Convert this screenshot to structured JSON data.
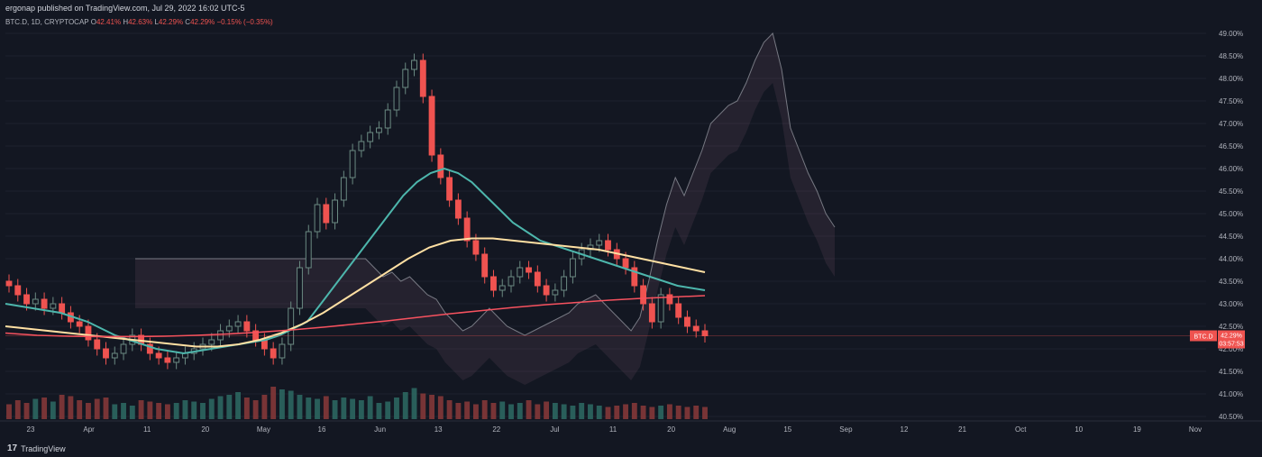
{
  "header": {
    "published": "ergonap published on TradingView.com, Jul 29, 2022 16:02 UTC-5",
    "symbol": "BTC.D, 1D, CRYPTOCAP",
    "o_label": "O",
    "o": "42.41%",
    "h_label": "H",
    "h": "42.63%",
    "l_label": "L",
    "l": "42.29%",
    "c_label": "C",
    "c": "42.29%",
    "change": "−0.15% (−0.35%)"
  },
  "brand": {
    "logo": "17",
    "name": "TradingView"
  },
  "price_tag": {
    "symbol": "BTC.D",
    "value": "42.29%",
    "countdown": "03:57:53"
  },
  "chart_data": {
    "type": "candlestick",
    "ylim": [
      40.5,
      49.0
    ],
    "y_ticks": [
      "49.00%",
      "48.50%",
      "48.00%",
      "47.50%",
      "47.00%",
      "46.50%",
      "46.00%",
      "45.50%",
      "45.00%",
      "44.50%",
      "44.00%",
      "43.50%",
      "43.00%",
      "42.50%",
      "42.00%",
      "41.50%",
      "41.00%",
      "40.50%"
    ],
    "x_ticks": [
      "23",
      "Apr",
      "11",
      "20",
      "May",
      "16",
      "Jun",
      "13",
      "22",
      "Jul",
      "11",
      "20",
      "Aug",
      "15",
      "Sep",
      "12",
      "21",
      "Oct",
      "10",
      "19",
      "Nov"
    ],
    "last_close": 42.29,
    "colors": {
      "up": "#6b8a82",
      "down": "#ef5350",
      "bg": "#131722",
      "ma_fast": "#4db6ac",
      "ma_mid": "#ffe0a3",
      "ma_slow": "#f7525f",
      "ichimoku": "#b2b5be"
    },
    "close_series": [
      43.4,
      43.2,
      43.0,
      43.1,
      42.9,
      43.0,
      42.8,
      42.6,
      42.5,
      42.2,
      42.0,
      41.8,
      41.9,
      42.1,
      42.3,
      42.1,
      41.9,
      41.8,
      41.7,
      41.8,
      41.9,
      42.0,
      42.1,
      42.2,
      42.4,
      42.5,
      42.6,
      42.4,
      42.2,
      42.0,
      41.8,
      42.1,
      42.9,
      43.8,
      44.6,
      45.2,
      44.8,
      45.3,
      45.8,
      46.4,
      46.6,
      46.8,
      46.9,
      47.3,
      47.8,
      48.2,
      48.4,
      47.6,
      46.3,
      45.8,
      45.3,
      44.9,
      44.4,
      44.1,
      43.6,
      43.3,
      43.4,
      43.6,
      43.8,
      43.7,
      43.4,
      43.2,
      43.3,
      43.6,
      44.0,
      44.2,
      44.3,
      44.4,
      44.2,
      44.0,
      43.8,
      43.4,
      43.0,
      42.6,
      43.2,
      43.0,
      42.7,
      42.5,
      42.4,
      42.29
    ],
    "volume_series": [
      0.55,
      0.7,
      0.6,
      0.75,
      0.8,
      0.65,
      0.9,
      0.85,
      0.7,
      0.6,
      0.75,
      0.8,
      0.55,
      0.6,
      0.5,
      0.7,
      0.65,
      0.6,
      0.55,
      0.6,
      0.7,
      0.65,
      0.6,
      0.75,
      0.85,
      0.9,
      1.0,
      0.8,
      0.7,
      0.9,
      1.2,
      1.1,
      1.05,
      0.9,
      0.8,
      0.75,
      0.85,
      0.7,
      0.8,
      0.75,
      0.7,
      0.85,
      0.6,
      0.65,
      0.8,
      1.0,
      1.15,
      0.95,
      0.9,
      0.85,
      0.7,
      0.6,
      0.65,
      0.55,
      0.7,
      0.6,
      0.65,
      0.55,
      0.6,
      0.7,
      0.55,
      0.65,
      0.6,
      0.55,
      0.5,
      0.6,
      0.55,
      0.5,
      0.45,
      0.5,
      0.55,
      0.6,
      0.5,
      0.45,
      0.5,
      0.55,
      0.5,
      0.45,
      0.5,
      0.45
    ],
    "ma_fast": [
      43.0,
      42.95,
      42.9,
      42.85,
      42.8,
      42.7,
      42.6,
      42.45,
      42.3,
      42.2,
      42.1,
      42.0,
      41.95,
      41.9,
      41.95,
      42.0,
      42.05,
      42.1,
      42.15,
      42.2,
      42.3,
      42.45,
      42.6,
      43.0,
      43.4,
      43.8,
      44.2,
      44.6,
      45.0,
      45.4,
      45.7,
      45.9,
      46.0,
      45.9,
      45.7,
      45.4,
      45.1,
      44.8,
      44.6,
      44.4,
      44.3,
      44.2,
      44.1,
      44.0,
      43.9,
      43.8,
      43.7,
      43.6,
      43.5,
      43.4,
      43.35,
      43.3
    ],
    "ma_mid": [
      42.5,
      42.45,
      42.4,
      42.35,
      42.3,
      42.25,
      42.2,
      42.15,
      42.1,
      42.05,
      42.05,
      42.1,
      42.2,
      42.35,
      42.55,
      42.8,
      43.1,
      43.4,
      43.7,
      44.0,
      44.25,
      44.4,
      44.45,
      44.45,
      44.4,
      44.35,
      44.3,
      44.25,
      44.2,
      44.1,
      44.0,
      43.9,
      43.8,
      43.7
    ],
    "ma_slow": [
      42.35,
      42.3,
      42.28,
      42.27,
      42.27,
      42.28,
      42.3,
      42.33,
      42.37,
      42.42,
      42.48,
      42.55,
      42.62,
      42.7,
      42.78,
      42.85,
      42.92,
      42.98,
      43.03,
      43.08,
      43.12,
      43.15,
      43.18
    ]
  }
}
